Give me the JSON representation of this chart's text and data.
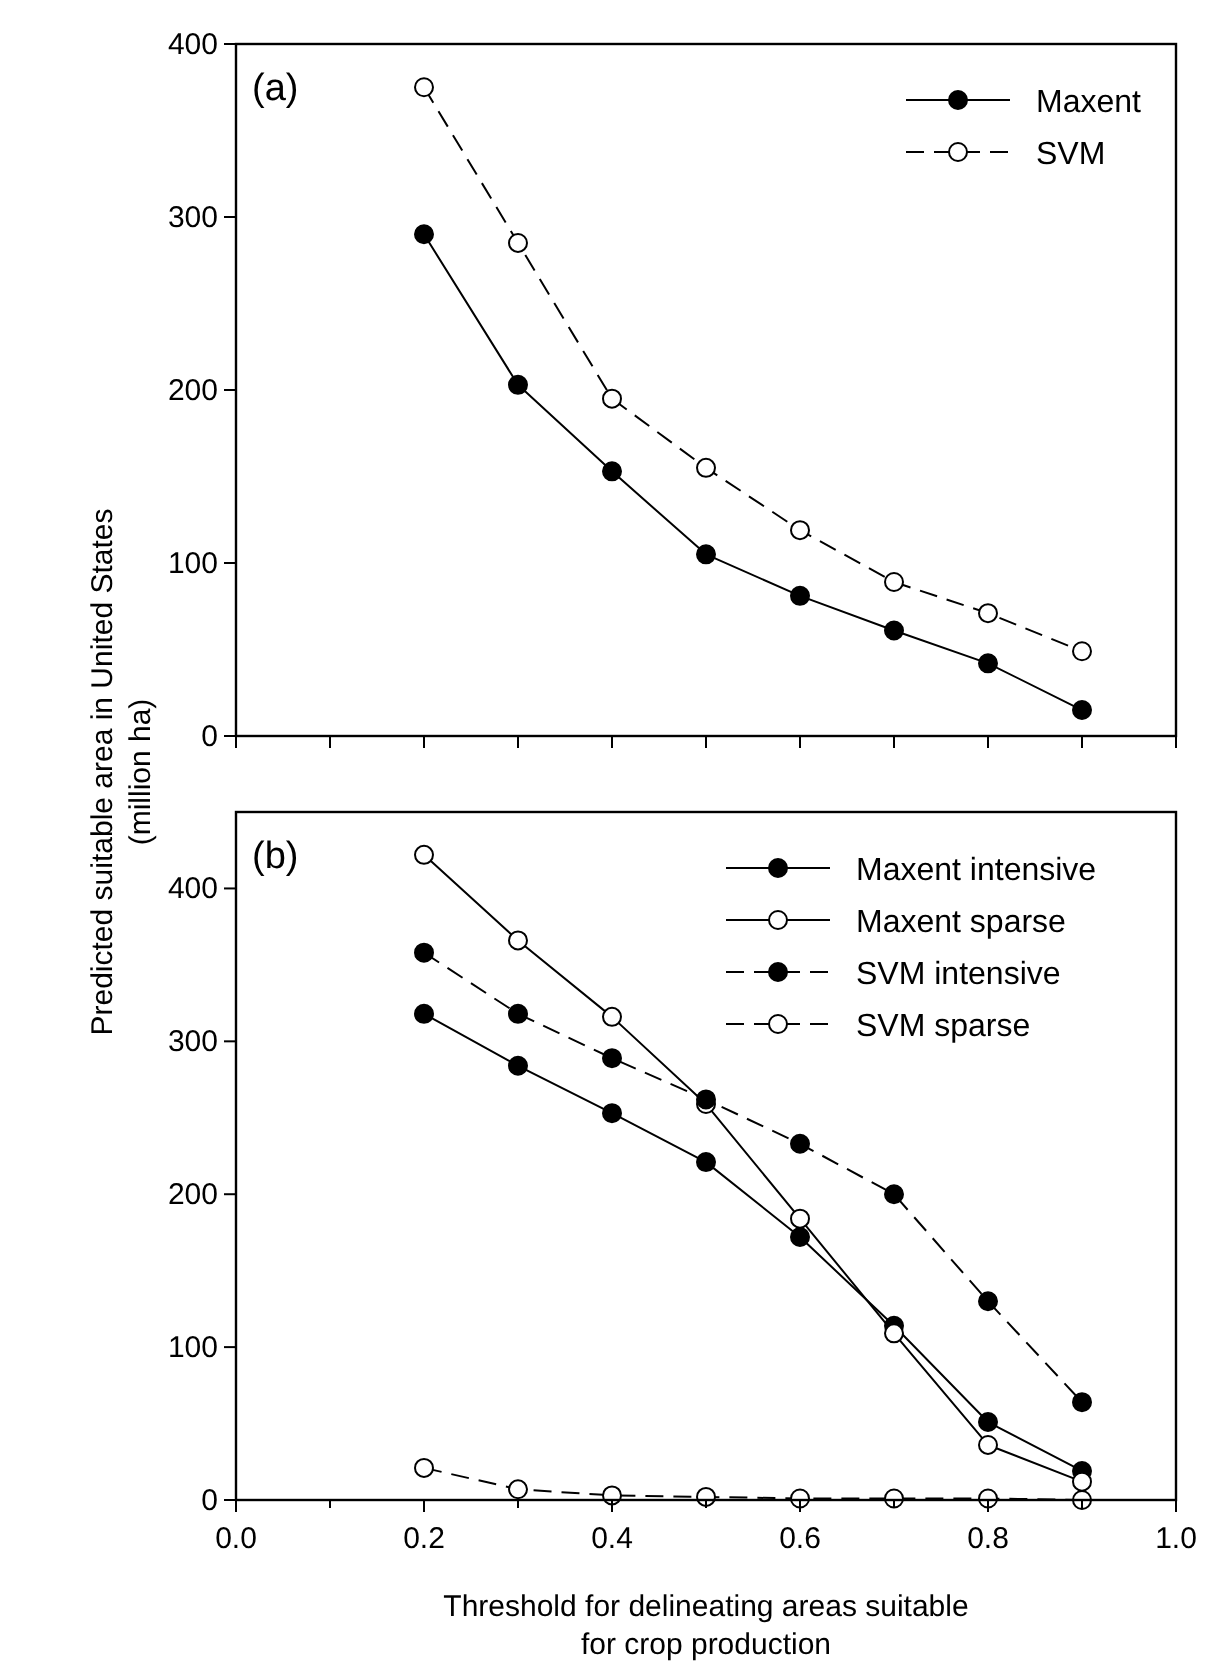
{
  "chart_data": [
    {
      "type": "line",
      "x": [
        0.2,
        0.3,
        0.4,
        0.5,
        0.6,
        0.7,
        0.8,
        0.9
      ],
      "ylabel": "Predicted suitable area in United States\n(million ha)",
      "annotations": [
        "(a)"
      ],
      "xlim": [
        0,
        1
      ],
      "xticks": [
        {
          "value": 0,
          "label": null
        },
        {
          "value": 0.1,
          "label": null
        },
        {
          "value": 0.2,
          "label": null
        },
        {
          "value": 0.3,
          "label": null
        },
        {
          "value": 0.4,
          "label": null
        },
        {
          "value": 0.5,
          "label": null
        },
        {
          "value": 0.6,
          "label": null
        },
        {
          "value": 0.7,
          "label": null
        },
        {
          "value": 0.8,
          "label": null
        },
        {
          "value": 0.9,
          "label": null
        },
        {
          "value": 1,
          "label": null
        }
      ],
      "ylim": [
        0,
        400
      ],
      "yticks": [
        0,
        100,
        200,
        300,
        400
      ],
      "tick_labels": "y",
      "legend": "top right",
      "marker": "circle",
      "series": [
        {
          "name": "Maxent",
          "color": "#000000",
          "line_style": "solid",
          "values": [
            290,
            203,
            153,
            105,
            81,
            61,
            42,
            15
          ]
        },
        {
          "name": "SVM",
          "color": "#000000",
          "colors": [
            "#ffffff",
            "#ffffff",
            "#ffffff",
            "#ffffff",
            "#ffffff",
            "#ffffff",
            "#ffffff",
            "#ffffff"
          ],
          "line_style": "dashed",
          "values": [
            375,
            285,
            195,
            155,
            119,
            89,
            71,
            49
          ]
        }
      ]
    },
    {
      "type": "line",
      "x": [
        0.2,
        0.3,
        0.4,
        0.5,
        0.6,
        0.7,
        0.8,
        0.9
      ],
      "xlabel": "Threshold for delineating areas suitable\nfor crop production",
      "annotations": [
        "(b)"
      ],
      "xlim": [
        0,
        1
      ],
      "xticks": [
        {
          "value": 0,
          "label": "0.0"
        },
        {
          "value": 0.1,
          "label": null
        },
        {
          "value": 0.2,
          "label": "0.2"
        },
        {
          "value": 0.3,
          "label": null
        },
        {
          "value": 0.4,
          "label": "0.4"
        },
        {
          "value": 0.5,
          "label": null
        },
        {
          "value": 0.6,
          "label": "0.6"
        },
        {
          "value": 0.7,
          "label": null
        },
        {
          "value": 0.8,
          "label": "0.8"
        },
        {
          "value": 0.9,
          "label": null
        },
        {
          "value": 1,
          "label": "1.0"
        }
      ],
      "ylim": [
        0,
        450
      ],
      "yticks": [
        0,
        100,
        200,
        300,
        400
      ],
      "legend": "top right",
      "marker": "circle",
      "series": [
        {
          "name": "Maxent intensive",
          "color": "#000000",
          "line_style": "solid",
          "values": [
            318,
            284,
            253,
            221,
            172,
            114,
            51,
            19
          ]
        },
        {
          "name": "Maxent sparse",
          "color": "#000000",
          "colors": [
            "#ffffff",
            "#ffffff",
            "#ffffff",
            "#ffffff",
            "#ffffff",
            "#ffffff",
            "#ffffff",
            "#ffffff"
          ],
          "line_style": "solid",
          "values": [
            422,
            366,
            316,
            259,
            184,
            109,
            36,
            12
          ]
        },
        {
          "name": "SVM intensive",
          "color": "#000000",
          "line_style": "dashed",
          "values": [
            358,
            318,
            289,
            262,
            233,
            200,
            130,
            64
          ]
        },
        {
          "name": "SVM sparse",
          "color": "#000000",
          "colors": [
            "#ffffff",
            "#ffffff",
            "#ffffff",
            "#ffffff",
            "#ffffff",
            "#ffffff",
            "#ffffff",
            "#ffffff"
          ],
          "line_style": "dashed",
          "values": [
            21,
            7,
            3,
            2,
            1,
            1,
            1,
            0
          ]
        }
      ]
    }
  ]
}
